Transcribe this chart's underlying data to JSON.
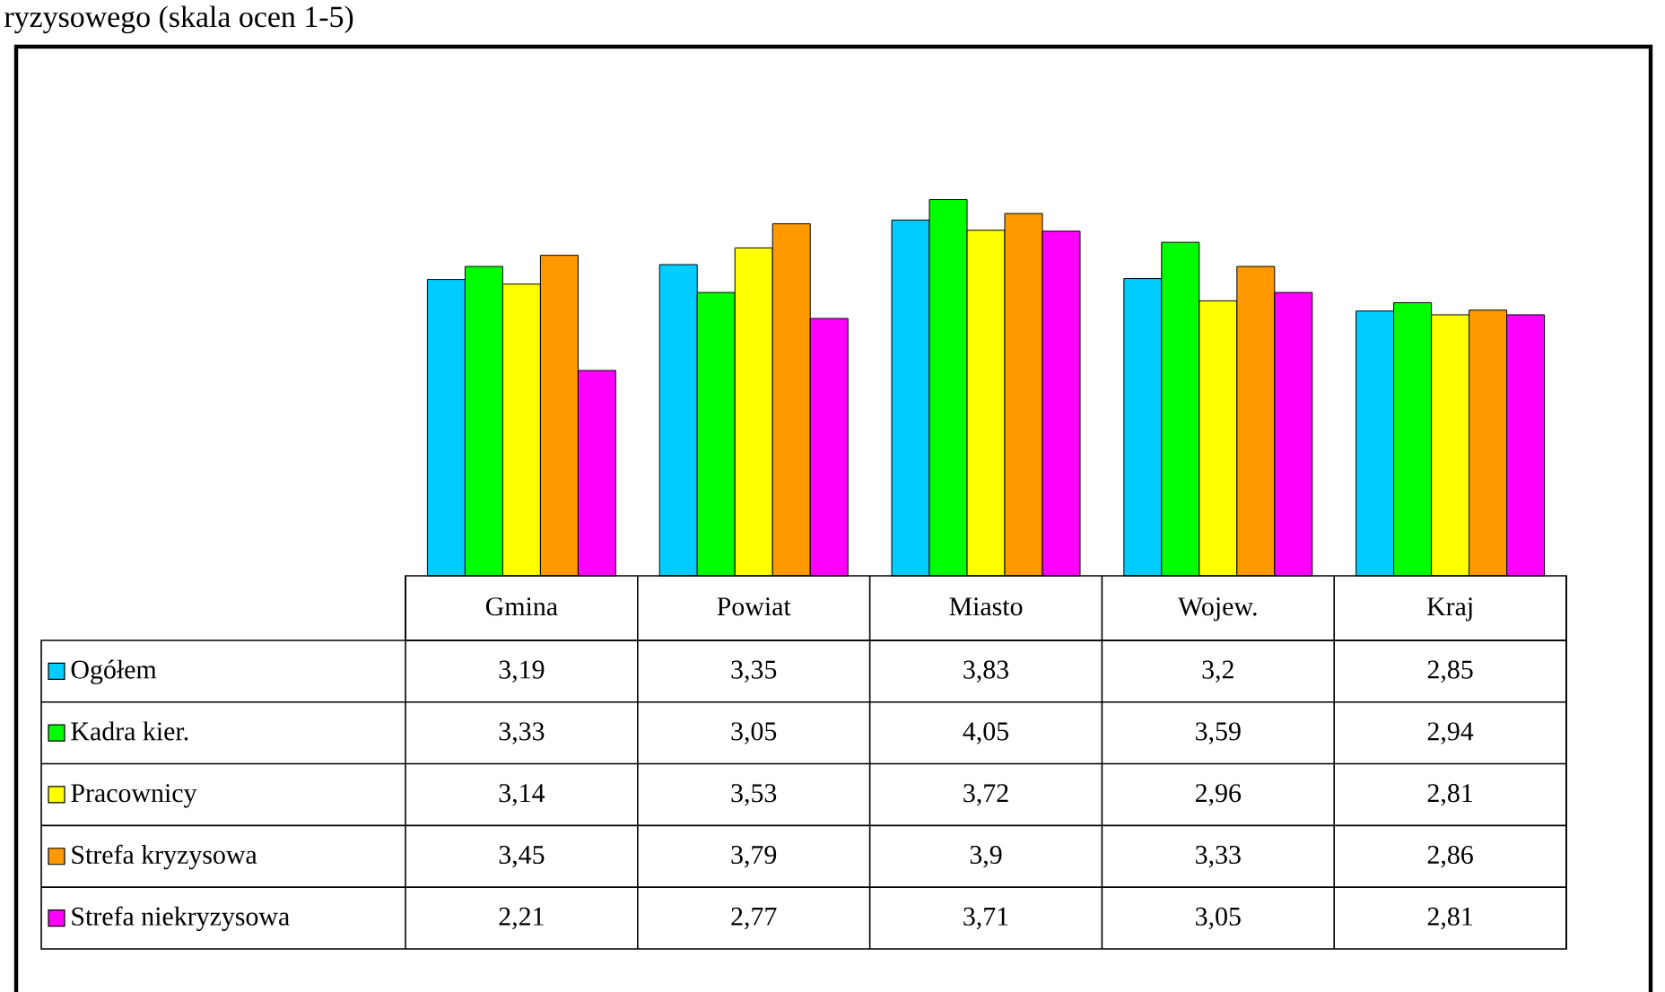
{
  "chart_data": {
    "type": "bar",
    "title": "ryzysowego (skala ocen 1-5)",
    "categories": [
      "Gmina",
      "Powiat",
      "Miasto",
      "Wojew.",
      "Kraj"
    ],
    "legend": "bottom left",
    "series": [
      {
        "name": "Ogółem",
        "color": "#00ccff",
        "values": [
          3.19,
          3.35,
          3.83,
          3.2,
          2.85
        ],
        "value_labels": [
          "3,19",
          "3,35",
          "3,83",
          "3,2",
          "2,85"
        ]
      },
      {
        "name": "Kadra kier.",
        "color": "#00ff00",
        "values": [
          3.33,
          3.05,
          4.05,
          3.59,
          2.94
        ],
        "value_labels": [
          "3,33",
          "3,05",
          "4,05",
          "3,59",
          "2,94"
        ]
      },
      {
        "name": "Pracownicy",
        "color": "#ffff00",
        "values": [
          3.14,
          3.53,
          3.72,
          2.96,
          2.81
        ],
        "value_labels": [
          "3,14",
          "3,53",
          "3,72",
          "2,96",
          "2,81"
        ]
      },
      {
        "name": "Strefa kryzysowa",
        "color": "#ff9900",
        "values": [
          3.45,
          3.79,
          3.9,
          3.33,
          2.86
        ],
        "value_labels": [
          "3,45",
          "3,79",
          "3,9",
          "3,33",
          "2,86"
        ]
      },
      {
        "name": "Strefa niekryzysowa",
        "color": "#ff00ff",
        "values": [
          2.21,
          2.77,
          3.71,
          3.05,
          2.81
        ],
        "value_labels": [
          "2,21",
          "2,77",
          "3,71",
          "3,05",
          "2,81"
        ]
      }
    ]
  }
}
